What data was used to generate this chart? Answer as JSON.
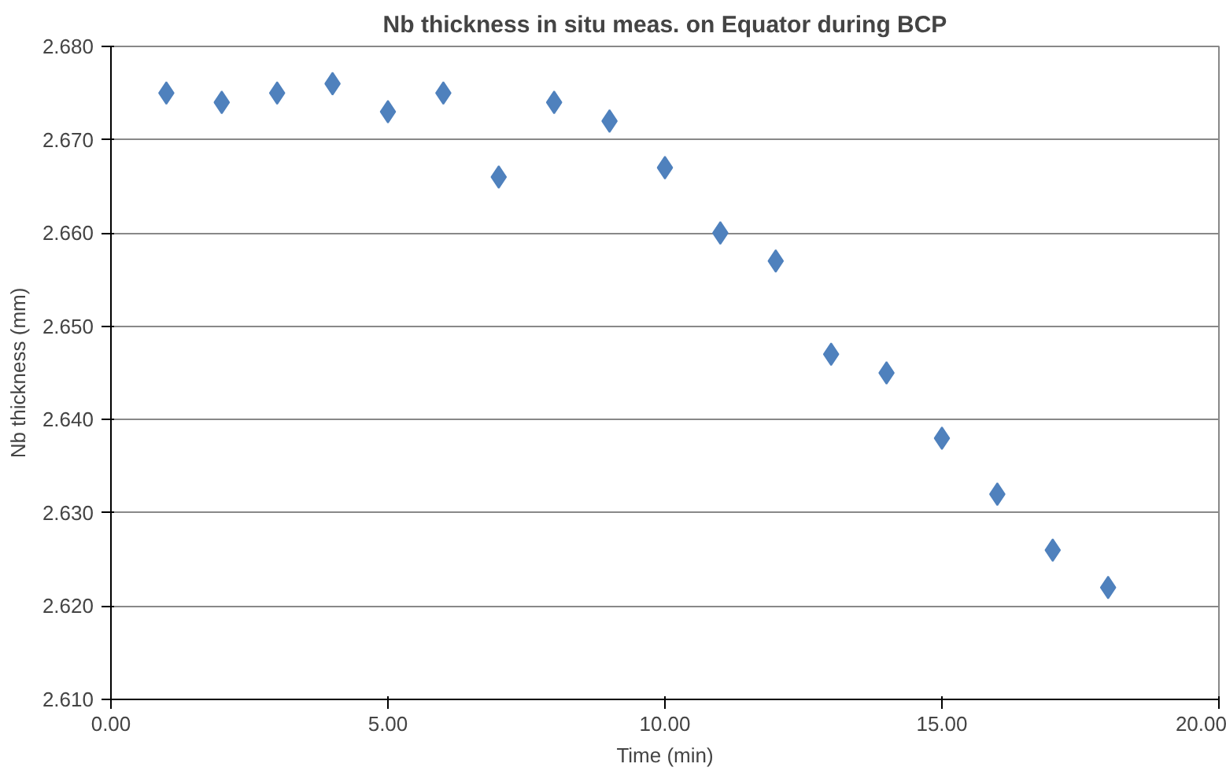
{
  "chart_data": {
    "type": "scatter",
    "title": "Nb thickness in situ meas. on Equator during BCP",
    "xlabel": "Time (min)",
    "ylabel": "Nb thickness (mm)",
    "x": [
      1,
      2,
      3,
      4,
      5,
      6,
      7,
      8,
      9,
      10,
      11,
      12,
      13,
      14,
      15,
      16,
      17,
      18
    ],
    "series": [
      {
        "color": "#4f81bd",
        "values": [
          2.675,
          2.674,
          2.675,
          2.676,
          2.673,
          2.675,
          2.666,
          2.674,
          2.672,
          2.667,
          2.66,
          2.657,
          2.647,
          2.645,
          2.638,
          2.632,
          2.626,
          2.622
        ]
      }
    ],
    "xlim": [
      0,
      20
    ],
    "ylim": [
      2.61,
      2.68
    ],
    "xticks": [
      {
        "value": 0,
        "label": "0.00"
      },
      {
        "value": 5,
        "label": "5.00"
      },
      {
        "value": 10,
        "label": "10.00"
      },
      {
        "value": 15,
        "label": "15.00"
      },
      {
        "value": 20,
        "label": "20.00"
      }
    ],
    "yticks": [
      {
        "value": 2.61,
        "label": "2.610"
      },
      {
        "value": 2.62,
        "label": "2.620"
      },
      {
        "value": 2.63,
        "label": "2.630"
      },
      {
        "value": 2.64,
        "label": "2.640"
      },
      {
        "value": 2.65,
        "label": "2.650"
      },
      {
        "value": 2.66,
        "label": "2.660"
      },
      {
        "value": 2.67,
        "label": "2.670"
      },
      {
        "value": 2.68,
        "label": "2.680"
      }
    ],
    "grid": "y",
    "marker": "diamond"
  }
}
